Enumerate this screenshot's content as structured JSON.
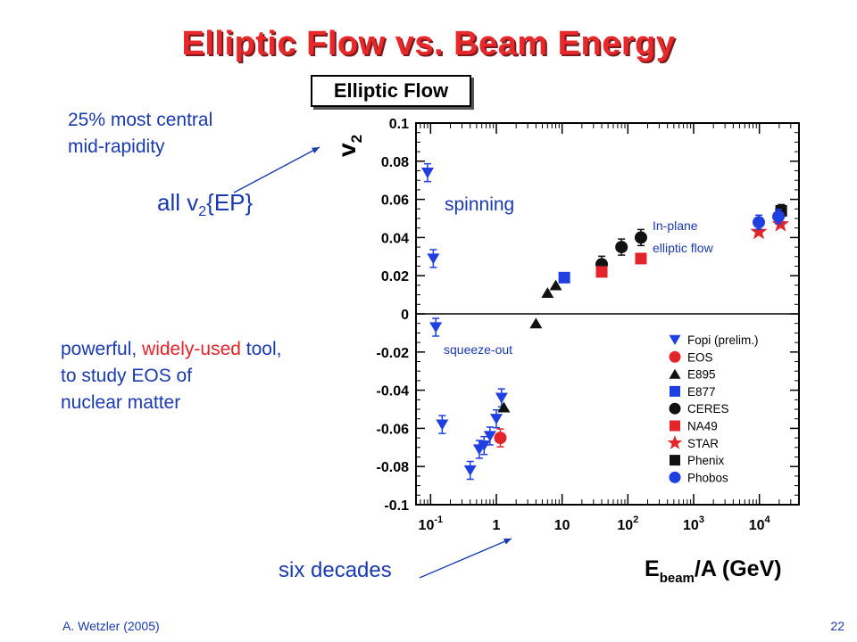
{
  "slide": {
    "title": "Elliptic Flow vs. Beam Energy",
    "panel_title": "Elliptic Flow",
    "note_central_line1": "25% most central",
    "note_central_line2": "mid-rapidity",
    "note_ep_main": "all v",
    "note_ep_sub": "2",
    "note_ep_tail": "{EP}",
    "note_tool_line1_a": "powerful, ",
    "note_tool_line1_red": "widely-used",
    "note_tool_line1_b": " tool,",
    "note_tool_line2": "to study EOS of",
    "note_tool_line3": "nuclear matter",
    "note_decades": "six decades",
    "footer_author": "A. Wetzler (2005)",
    "page_number": "22",
    "accent_red": "#e3242b",
    "text_blue": "#1a3ab0"
  },
  "chart_data": {
    "type": "scatter",
    "xscale": "log",
    "xlim": [
      0.06,
      40000
    ],
    "ylim": [
      -0.1,
      0.1
    ],
    "ylabel_main": "v",
    "ylabel_sub": "2",
    "xlabel_main": "E",
    "xlabel_sub": "beam",
    "xlabel_tail": "/A (GeV)",
    "x_ticks": [
      {
        "v": 0.1,
        "base": "10",
        "exp": "-1"
      },
      {
        "v": 1,
        "base": "1",
        "exp": ""
      },
      {
        "v": 10,
        "base": "10",
        "exp": ""
      },
      {
        "v": 100,
        "base": "10",
        "exp": "2"
      },
      {
        "v": 1000,
        "base": "10",
        "exp": "3"
      },
      {
        "v": 10000,
        "base": "10",
        "exp": "4"
      }
    ],
    "y_ticks": [
      "0.1",
      "0.08",
      "0.06",
      "0.04",
      "0.02",
      "0",
      "-0.02",
      "-0.04",
      "-0.06",
      "-0.08",
      "-0.1"
    ],
    "y_tick_values": [
      0.1,
      0.08,
      0.06,
      0.04,
      0.02,
      0,
      -0.02,
      -0.04,
      -0.06,
      -0.08,
      -0.1
    ],
    "annotations": {
      "spinning": "spinning",
      "inplane_line1": "In-plane",
      "inplane_line2": "elliptic flow",
      "squeeze": "squeeze-out"
    },
    "series": [
      {
        "name": "Fopi (prelim.)",
        "marker": "triangle-down",
        "color": "#1f3fe0",
        "points": [
          [
            0.09,
            0.074
          ],
          [
            0.11,
            0.029
          ],
          [
            0.12,
            -0.007
          ],
          [
            0.15,
            -0.058
          ],
          [
            0.4,
            -0.082
          ],
          [
            0.55,
            -0.071
          ],
          [
            0.65,
            -0.069
          ],
          [
            0.8,
            -0.064
          ],
          [
            1.0,
            -0.055
          ],
          [
            1.2,
            -0.044
          ]
        ]
      },
      {
        "name": "EOS",
        "marker": "circle",
        "color": "#e3242b",
        "points": [
          [
            1.15,
            -0.065
          ]
        ]
      },
      {
        "name": "E895",
        "marker": "triangle-up",
        "color": "#111111",
        "points": [
          [
            1.3,
            -0.049
          ],
          [
            4.0,
            -0.005
          ],
          [
            6.0,
            0.011
          ],
          [
            8.0,
            0.015
          ]
        ]
      },
      {
        "name": "E877",
        "marker": "square",
        "color": "#1f3fe0",
        "points": [
          [
            10.8,
            0.019
          ]
        ]
      },
      {
        "name": "CERES",
        "marker": "circle",
        "color": "#111111",
        "points": [
          [
            40,
            0.026
          ],
          [
            80,
            0.035
          ],
          [
            158,
            0.04
          ]
        ]
      },
      {
        "name": "NA49",
        "marker": "square",
        "color": "#e3242b",
        "points": [
          [
            40,
            0.022
          ],
          [
            158,
            0.029
          ]
        ]
      },
      {
        "name": "STAR",
        "marker": "star",
        "color": "#e3242b",
        "points": [
          [
            9800,
            0.043
          ],
          [
            21000,
            0.047
          ]
        ]
      },
      {
        "name": "Phenix",
        "marker": "square",
        "color": "#111111",
        "points": [
          [
            21500,
            0.054
          ]
        ]
      },
      {
        "name": "Phobos",
        "marker": "circle",
        "color": "#1f3fe0",
        "points": [
          [
            9800,
            0.048
          ],
          [
            19500,
            0.051
          ]
        ]
      }
    ]
  }
}
